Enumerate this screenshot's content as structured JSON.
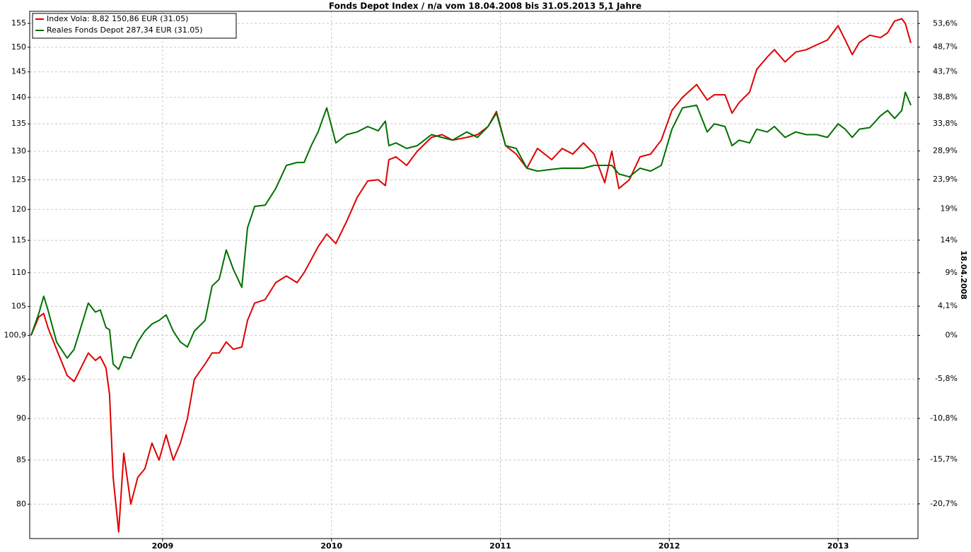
{
  "chart_data": {
    "type": "line",
    "title": "Fonds Depot Index / n/a vom 18.04.2008 bis 31.05.2013 5,1 Jahre",
    "y2_label": "18.04.2008",
    "ylog": true,
    "y2log": true,
    "grid": true,
    "legend": "upper-left",
    "xlim": [
      2008.213,
      2013.473
    ],
    "xticks": [
      2009,
      2010,
      2011,
      2012,
      2013
    ],
    "ylim": [
      76.3,
      157.6
    ],
    "yticks": [
      80,
      85,
      90,
      95,
      {
        "value": 100.9,
        "label": "100,9"
      },
      105,
      110,
      115,
      120,
      125,
      130,
      135,
      140,
      145,
      150,
      155
    ],
    "y2lim": [
      -24.4,
      56.2
    ],
    "y2ticks": [
      {
        "value": 53.6,
        "label": "53,6%"
      },
      {
        "value": 48.7,
        "label": "48,7%"
      },
      {
        "value": 43.7,
        "label": "43,7%"
      },
      {
        "value": 38.8,
        "label": "38,8%"
      },
      {
        "value": 33.8,
        "label": "33,8%"
      },
      {
        "value": 28.9,
        "label": "28,9%"
      },
      {
        "value": 23.9,
        "label": "23,9%"
      },
      {
        "value": 19,
        "label": "19%"
      },
      {
        "value": 14,
        "label": "14%"
      },
      {
        "value": 9,
        "label": "9%"
      },
      {
        "value": 4.1,
        "label": "4,1%"
      },
      {
        "value": 0,
        "label": "0%"
      },
      {
        "value": -5.8,
        "label": "-5,8%"
      },
      {
        "value": -10.8,
        "label": "-10,8%"
      },
      {
        "value": -15.7,
        "label": "-15,7%"
      },
      {
        "value": -20.7,
        "label": "-20,7%"
      }
    ],
    "x": [
      2008.221,
      2008.267,
      2008.296,
      2008.321,
      2008.372,
      2008.435,
      2008.476,
      2008.56,
      2008.602,
      2008.631,
      2008.665,
      2008.686,
      2008.707,
      2008.74,
      2008.77,
      2008.812,
      2008.853,
      2008.895,
      2008.937,
      2008.979,
      2009.021,
      2009.063,
      2009.105,
      2009.147,
      2009.188,
      2009.251,
      2009.293,
      2009.335,
      2009.377,
      2009.419,
      2009.469,
      2009.503,
      2009.545,
      2009.607,
      2009.67,
      2009.733,
      2009.796,
      2009.838,
      2009.88,
      2009.921,
      2009.972,
      2010.026,
      2010.089,
      2010.152,
      2010.215,
      2010.277,
      2010.319,
      2010.34,
      2010.382,
      2010.445,
      2010.508,
      2010.592,
      2010.654,
      2010.717,
      2010.801,
      2010.864,
      2010.927,
      2010.977,
      2011.031,
      2011.094,
      2011.157,
      2011.22,
      2011.304,
      2011.366,
      2011.429,
      2011.492,
      2011.555,
      2011.618,
      2011.66,
      2011.702,
      2011.764,
      2011.827,
      2011.89,
      2011.953,
      2012.016,
      2012.079,
      2012.162,
      2012.225,
      2012.267,
      2012.33,
      2012.372,
      2012.414,
      2012.476,
      2012.518,
      2012.581,
      2012.623,
      2012.686,
      2012.749,
      2012.812,
      2012.874,
      2012.937,
      2013.0,
      2013.042,
      2013.084,
      2013.126,
      2013.188,
      2013.251,
      2013.293,
      2013.335,
      2013.377,
      2013.398,
      2013.431
    ],
    "series": [
      {
        "name": "Index Vola: 8,82 150,86 EUR (31.05)",
        "color": "#e00000",
        "values": [
          100.9,
          103.5,
          104,
          102,
          99,
          95.5,
          94.7,
          98.5,
          97.5,
          98,
          96.5,
          93,
          83,
          77,
          85.8,
          80,
          83,
          84,
          87,
          85,
          88,
          85,
          87,
          90,
          95,
          97,
          98.5,
          98.5,
          100,
          99,
          99.3,
          103,
          105.5,
          106,
          108.5,
          109.5,
          108.5,
          110,
          112,
          114,
          116,
          114.5,
          118,
          122,
          124.8,
          125,
          124,
          128.5,
          129,
          127.5,
          130,
          132.5,
          133,
          132,
          132.5,
          133,
          134.5,
          137.3,
          131,
          129.5,
          127,
          130.5,
          128.5,
          130.5,
          129.5,
          131.5,
          129.5,
          124.5,
          130,
          123.5,
          125,
          129,
          129.5,
          132,
          137.5,
          140,
          142.5,
          139.5,
          140.5,
          140.5,
          137,
          139,
          141,
          145.5,
          148,
          149.5,
          147,
          149,
          149.5,
          150.5,
          151.5,
          154.5,
          151.5,
          148.5,
          151,
          152.5,
          152,
          153,
          155.5,
          156,
          155,
          150.86
        ]
      },
      {
        "name": "Reales Fonds Depot 287,34 EUR (31.05)",
        "color": "#007000",
        "values": [
          100.9,
          104,
          106.5,
          104.5,
          100,
          97.8,
          99,
          105.5,
          104.2,
          104.5,
          102,
          101.7,
          97,
          96.3,
          98,
          97.8,
          100,
          101.5,
          102.5,
          103,
          103.8,
          101.5,
          100,
          99.3,
          101.5,
          103,
          108,
          109,
          113.5,
          110.5,
          107.8,
          117,
          120.5,
          120.7,
          123.5,
          127.5,
          128,
          128,
          131,
          133.5,
          138,
          131.5,
          133,
          133.5,
          134.5,
          133.7,
          135.5,
          131,
          131.5,
          130.5,
          131,
          133,
          132.5,
          132,
          133.5,
          132.5,
          134.5,
          137,
          131,
          130.5,
          127,
          126.5,
          126.8,
          127,
          127,
          127,
          127.5,
          127.5,
          127.5,
          126,
          125.5,
          127,
          126.5,
          127.5,
          134,
          138,
          138.5,
          133.5,
          135,
          134.5,
          131,
          132,
          131.5,
          134,
          133.5,
          134.5,
          132.5,
          133.5,
          133,
          133,
          132.5,
          135,
          134,
          132.5,
          134,
          134.3,
          136.5,
          137.5,
          136,
          137.5,
          141,
          138.5
        ]
      }
    ]
  }
}
